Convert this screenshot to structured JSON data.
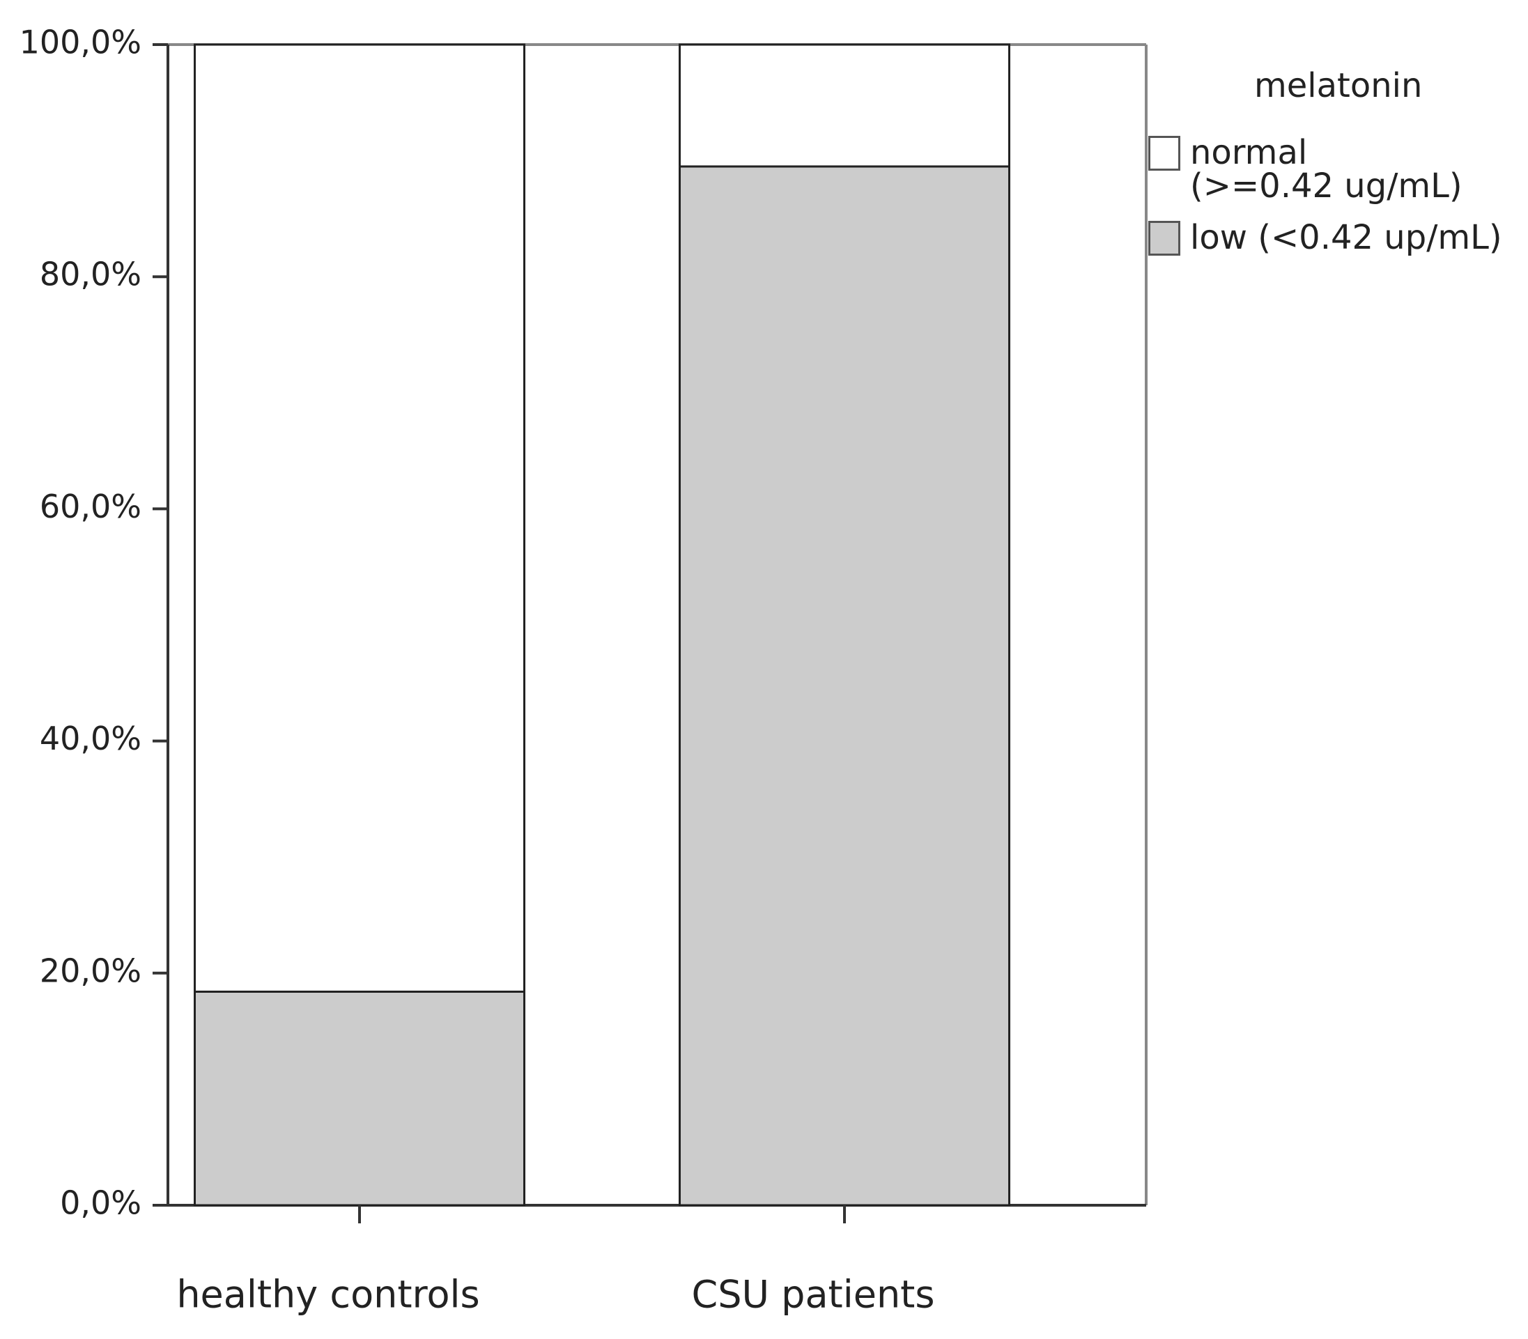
{
  "chart_data": {
    "type": "stacked_bar",
    "categories": [
      "healthy controls",
      "CSU patients"
    ],
    "series": [
      {
        "name": "low (<0.42 up/mL)",
        "color": "#cccccc",
        "values": [
          18.4,
          89.5
        ]
      },
      {
        "name": "normal    (>=0.42 ug/mL)",
        "color": "#ffffff",
        "values": [
          81.6,
          10.5
        ]
      }
    ],
    "legend_title": "melatonin",
    "ylim": [
      0,
      100
    ],
    "yticks": [
      {
        "value": 0,
        "label": "0,0%"
      },
      {
        "value": 20,
        "label": "20,0%"
      },
      {
        "value": 40,
        "label": "40,0%"
      },
      {
        "value": 60,
        "label": "60,0%"
      },
      {
        "value": 80,
        "label": "80,0%"
      },
      {
        "value": 100,
        "label": "100,0%"
      }
    ],
    "legend_position": "right"
  }
}
